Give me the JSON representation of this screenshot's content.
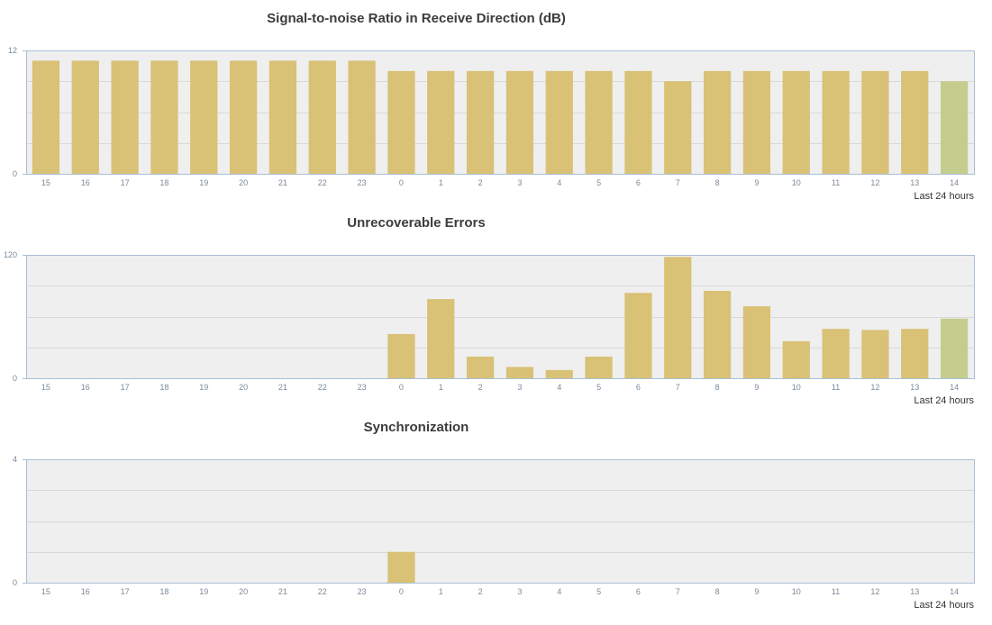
{
  "colors": {
    "bar": "#d9c176",
    "bar_current": "#c4cd8e",
    "plot_background": "#efefef",
    "axis": "#a8bfd6",
    "grid": "#d9d9d9"
  },
  "chart_data": [
    {
      "type": "bar",
      "title": "Signal-to-noise Ratio in Receive Direction (dB)",
      "xlabel": "Last 24 hours",
      "ylabel": "",
      "categories": [
        "15",
        "16",
        "17",
        "18",
        "19",
        "20",
        "21",
        "22",
        "23",
        "0",
        "1",
        "2",
        "3",
        "4",
        "5",
        "6",
        "7",
        "8",
        "9",
        "10",
        "11",
        "12",
        "13",
        "14"
      ],
      "values": [
        11,
        11,
        11,
        11,
        11,
        11,
        11,
        11,
        11,
        10,
        10,
        10,
        10,
        10,
        10,
        10,
        9,
        10,
        10,
        10,
        10,
        10,
        10,
        9
      ],
      "ylim": [
        0,
        12
      ],
      "yticks": [
        "0",
        "12"
      ],
      "grid": true,
      "highlighted_category": "14"
    },
    {
      "type": "bar",
      "title": "Unrecoverable Errors",
      "xlabel": "Last 24 hours",
      "ylabel": "",
      "categories": [
        "15",
        "16",
        "17",
        "18",
        "19",
        "20",
        "21",
        "22",
        "23",
        "0",
        "1",
        "2",
        "3",
        "4",
        "5",
        "6",
        "7",
        "8",
        "9",
        "10",
        "11",
        "12",
        "13",
        "14"
      ],
      "values": [
        0,
        0,
        0,
        0,
        0,
        0,
        0,
        0,
        0,
        43,
        77,
        21,
        11,
        8,
        21,
        83,
        118,
        85,
        70,
        36,
        48,
        47,
        48,
        58
      ],
      "ylim": [
        0,
        120
      ],
      "yticks": [
        "0",
        "120"
      ],
      "grid": true,
      "highlighted_category": "14"
    },
    {
      "type": "bar",
      "title": "Synchronization",
      "xlabel": "Last 24 hours",
      "ylabel": "",
      "categories": [
        "15",
        "16",
        "17",
        "18",
        "19",
        "20",
        "21",
        "22",
        "23",
        "0",
        "1",
        "2",
        "3",
        "4",
        "5",
        "6",
        "7",
        "8",
        "9",
        "10",
        "11",
        "12",
        "13",
        "14"
      ],
      "values": [
        0,
        0,
        0,
        0,
        0,
        0,
        0,
        0,
        0,
        1,
        0,
        0,
        0,
        0,
        0,
        0,
        0,
        0,
        0,
        0,
        0,
        0,
        0,
        0
      ],
      "ylim": [
        0,
        4
      ],
      "yticks": [
        "0",
        "4"
      ],
      "grid": true,
      "highlighted_category": "14"
    }
  ]
}
